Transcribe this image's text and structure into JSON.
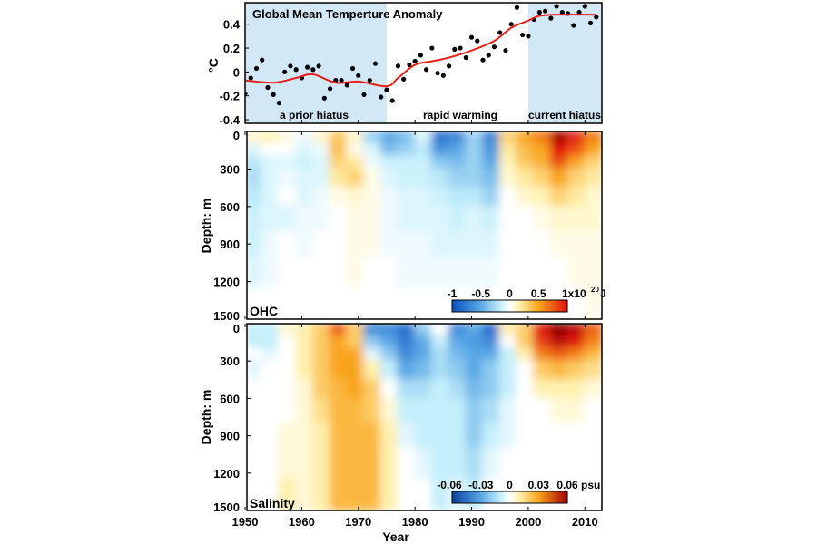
{
  "chart_data": [
    {
      "type": "scatter",
      "title": "Global Mean Temperture Anomaly",
      "ylabel": "°C",
      "xlim": [
        1950,
        2013
      ],
      "ylim": [
        -0.43,
        0.58
      ],
      "yticks": [
        "0.4",
        "0.2",
        "0",
        "-0.2",
        "-0.4"
      ],
      "ytick_values": [
        0.4,
        0.2,
        0,
        -0.2,
        -0.4
      ],
      "shaded_periods": [
        {
          "start": 1950,
          "end": 1975,
          "label": "a prior hiatus",
          "color": "#d3e8f7"
        },
        {
          "start": 1975,
          "end": 2000,
          "label": "rapid warming",
          "color": "#ffffff"
        },
        {
          "start": 2000,
          "end": 2013,
          "label": "current hiatus",
          "color": "#d3e8f7"
        }
      ],
      "points": {
        "x_start": 1950,
        "y": [
          -0.18,
          -0.05,
          0.03,
          0.1,
          -0.13,
          -0.19,
          -0.26,
          0.0,
          0.05,
          0.02,
          -0.05,
          0.04,
          0.02,
          0.05,
          -0.22,
          -0.14,
          -0.07,
          -0.07,
          -0.11,
          0.03,
          -0.03,
          -0.19,
          -0.07,
          0.07,
          -0.21,
          -0.15,
          -0.24,
          0.05,
          -0.06,
          0.06,
          0.09,
          0.14,
          0.02,
          0.2,
          -0.01,
          -0.03,
          0.05,
          0.19,
          0.2,
          0.12,
          0.29,
          0.26,
          0.1,
          0.14,
          0.21,
          0.33,
          0.18,
          0.4,
          0.54,
          0.31,
          0.3,
          0.44,
          0.5,
          0.51,
          0.45,
          0.55,
          0.5,
          0.49,
          0.39,
          0.5,
          0.55,
          0.41,
          0.46
        ],
        "color": "#000000"
      },
      "smooth_line": {
        "x": [
          1950,
          1955,
          1959,
          1962,
          1966,
          1970,
          1975,
          1977,
          1980,
          1983,
          1986,
          1990,
          1994,
          1997,
          2000,
          2002,
          2005,
          2012
        ],
        "y": [
          -0.07,
          -0.09,
          -0.05,
          -0.02,
          -0.09,
          -0.08,
          -0.12,
          -0.05,
          0.06,
          0.09,
          0.12,
          0.18,
          0.26,
          0.37,
          0.43,
          0.47,
          0.48,
          0.48
        ],
        "color": "#e8201a"
      }
    },
    {
      "type": "heatmap",
      "panel_label": "OHC",
      "ylabel": "Depth: m",
      "ylim": [
        0,
        1500
      ],
      "yticks": [
        "0",
        "300",
        "600",
        "900",
        "1200",
        "1500"
      ],
      "ytick_values": [
        0,
        300,
        600,
        900,
        1200,
        1500
      ],
      "xlim": [
        1950,
        2013
      ],
      "year_bin_starts": [
        1950,
        1953,
        1956,
        1959,
        1962,
        1965,
        1968,
        1971,
        1974,
        1977,
        1980,
        1983,
        1986,
        1989,
        1992,
        1995,
        1998,
        2001,
        2004,
        2007,
        2010
      ],
      "depth_bin_edges": [
        0,
        100,
        200,
        300,
        450,
        600,
        800,
        1000,
        1250,
        1500
      ],
      "colorbar": {
        "ticks": [
          "-1",
          "-0.5",
          "0",
          "0.5",
          "1x10"
        ],
        "tick_values": [
          -1,
          -0.5,
          0,
          0.5,
          1
        ],
        "unit_exp": "20",
        "unit": "J",
        "range": [
          -1,
          1
        ]
      },
      "values": [
        [
          0.1,
          -0.1,
          -0.2,
          -0.25,
          -0.2,
          -0.15,
          -0.15,
          -0.1,
          0
        ],
        [
          0.15,
          0,
          -0.1,
          -0.1,
          -0.1,
          -0.1,
          -0.05,
          -0.05,
          0
        ],
        [
          0.05,
          0,
          -0.1,
          -0.05,
          0,
          -0.1,
          0,
          0,
          0
        ],
        [
          -0.05,
          -0.1,
          -0.15,
          -0.1,
          -0.1,
          -0.05,
          -0.05,
          0,
          0
        ],
        [
          0.1,
          -0.05,
          -0.1,
          -0.1,
          -0.05,
          -0.05,
          0,
          0,
          0
        ],
        [
          0.35,
          0.4,
          0.3,
          0.2,
          0.05,
          0,
          0,
          0,
          0
        ],
        [
          0.1,
          0.05,
          0.2,
          0.3,
          0.1,
          0.05,
          0.05,
          0.05,
          0
        ],
        [
          -0.3,
          -0.1,
          -0.05,
          0.05,
          0.05,
          0.05,
          0.05,
          0,
          0
        ],
        [
          -0.5,
          -0.4,
          -0.15,
          -0.1,
          -0.05,
          -0.05,
          -0.05,
          0,
          0
        ],
        [
          -0.4,
          -0.3,
          -0.15,
          -0.15,
          -0.1,
          -0.1,
          -0.05,
          -0.05,
          0
        ],
        [
          -0.1,
          -0.2,
          -0.15,
          -0.15,
          -0.1,
          -0.1,
          -0.05,
          -0.05,
          0
        ],
        [
          -0.8,
          -0.6,
          -0.35,
          -0.2,
          -0.15,
          -0.1,
          -0.1,
          -0.05,
          0
        ],
        [
          -0.7,
          -0.5,
          -0.4,
          -0.3,
          -0.2,
          -0.15,
          -0.1,
          -0.05,
          0
        ],
        [
          -0.3,
          -0.3,
          -0.3,
          -0.3,
          -0.2,
          -0.1,
          -0.1,
          -0.05,
          0
        ],
        [
          -0.7,
          -0.6,
          -0.5,
          -0.4,
          -0.3,
          -0.15,
          -0.1,
          -0.05,
          0
        ],
        [
          0.3,
          0.2,
          0.15,
          0.1,
          0,
          0,
          0,
          0,
          0
        ],
        [
          0.5,
          0.4,
          0.35,
          0.2,
          0.1,
          0,
          0,
          0,
          0
        ],
        [
          0.6,
          0.5,
          0.45,
          0.3,
          0.15,
          0.05,
          0,
          0,
          0
        ],
        [
          0.95,
          0.85,
          0.7,
          0.5,
          0.3,
          0.1,
          0.05,
          0,
          0
        ],
        [
          0.8,
          0.7,
          0.5,
          0.3,
          0.2,
          0.1,
          0.05,
          0.05,
          0
        ],
        [
          0.6,
          0.5,
          0.3,
          0.2,
          0.1,
          0.1,
          0.05,
          0.05,
          0.05
        ]
      ]
    },
    {
      "type": "heatmap",
      "panel_label": "Salinity",
      "ylabel": "Depth: m",
      "xlabel": "Year",
      "ylim": [
        0,
        1500
      ],
      "yticks": [
        "0",
        "300",
        "600",
        "900",
        "1200",
        "1500"
      ],
      "ytick_values": [
        0,
        300,
        600,
        900,
        1200,
        1500
      ],
      "xlim": [
        1950,
        2013
      ],
      "xticks": [
        "1950",
        "1960",
        "1970",
        "1980",
        "1990",
        "2000",
        "2010"
      ],
      "xtick_values": [
        1950,
        1960,
        1970,
        1980,
        1990,
        2000,
        2010
      ],
      "year_bin_starts": [
        1950,
        1953,
        1956,
        1959,
        1962,
        1965,
        1968,
        1971,
        1974,
        1977,
        1980,
        1983,
        1986,
        1989,
        1992,
        1995,
        1998,
        2001,
        2004,
        2007,
        2010
      ],
      "depth_bin_edges": [
        0,
        100,
        200,
        300,
        450,
        600,
        800,
        1000,
        1250,
        1500
      ],
      "colorbar": {
        "ticks": [
          "-0.06",
          "-0.03",
          "0",
          "0.03",
          "0.06"
        ],
        "tick_values": [
          -0.06,
          -0.03,
          0,
          0.03,
          0.06
        ],
        "unit": "psu",
        "range": [
          -0.06,
          0.06
        ]
      },
      "values": [
        [
          -0.01,
          -0.01,
          0,
          -0.005,
          0,
          0,
          0,
          0,
          0
        ],
        [
          -0.01,
          -0.01,
          -0.005,
          0,
          0,
          0,
          0,
          0,
          0
        ],
        [
          0.005,
          0,
          0,
          0,
          0,
          0,
          0.005,
          0.005,
          0.01
        ],
        [
          0.01,
          0.01,
          0.01,
          0.01,
          0.005,
          0.005,
          0.005,
          0.005,
          0.005
        ],
        [
          0.02,
          0.02,
          0.02,
          0.02,
          0.02,
          0.015,
          0.01,
          0.01,
          0.01
        ],
        [
          0.04,
          0.03,
          0.03,
          0.03,
          0.025,
          0.025,
          0.025,
          0.025,
          0.025
        ],
        [
          0.02,
          0.02,
          0.03,
          0.03,
          0.03,
          0.025,
          0.025,
          0.025,
          0.025
        ],
        [
          -0.04,
          -0.02,
          -0.005,
          0.01,
          0.02,
          0.02,
          0.025,
          0.025,
          0.025
        ],
        [
          -0.04,
          -0.03,
          -0.02,
          -0.01,
          0,
          0.005,
          0.01,
          0.01,
          0.01
        ],
        [
          -0.05,
          -0.045,
          -0.04,
          -0.03,
          -0.015,
          -0.01,
          -0.005,
          0,
          0
        ],
        [
          -0.02,
          -0.03,
          -0.03,
          -0.025,
          -0.015,
          -0.01,
          -0.01,
          -0.005,
          0
        ],
        [
          0,
          -0.01,
          -0.015,
          -0.015,
          -0.01,
          -0.01,
          -0.01,
          -0.01,
          -0.01
        ],
        [
          -0.04,
          -0.03,
          -0.025,
          -0.02,
          -0.015,
          -0.01,
          -0.01,
          -0.01,
          -0.005
        ],
        [
          -0.03,
          -0.035,
          -0.03,
          -0.03,
          -0.025,
          -0.02,
          -0.02,
          -0.015,
          -0.01
        ],
        [
          -0.05,
          -0.04,
          -0.03,
          -0.02,
          -0.02,
          -0.015,
          -0.01,
          -0.005,
          0
        ],
        [
          0.01,
          0,
          -0.01,
          -0.01,
          -0.01,
          -0.005,
          -0.005,
          0,
          0
        ],
        [
          0.02,
          0.02,
          0.01,
          0,
          0,
          0,
          0,
          0,
          0
        ],
        [
          0.05,
          0.045,
          0.035,
          0.02,
          0.01,
          0,
          0,
          0,
          0
        ],
        [
          0.06,
          0.055,
          0.04,
          0.025,
          0.01,
          0.005,
          0,
          0,
          0
        ],
        [
          0.055,
          0.05,
          0.035,
          0.02,
          0.01,
          0.005,
          0,
          0,
          0
        ],
        [
          0.04,
          0.035,
          0.025,
          0.015,
          0.005,
          0,
          0,
          0,
          0
        ]
      ]
    }
  ]
}
